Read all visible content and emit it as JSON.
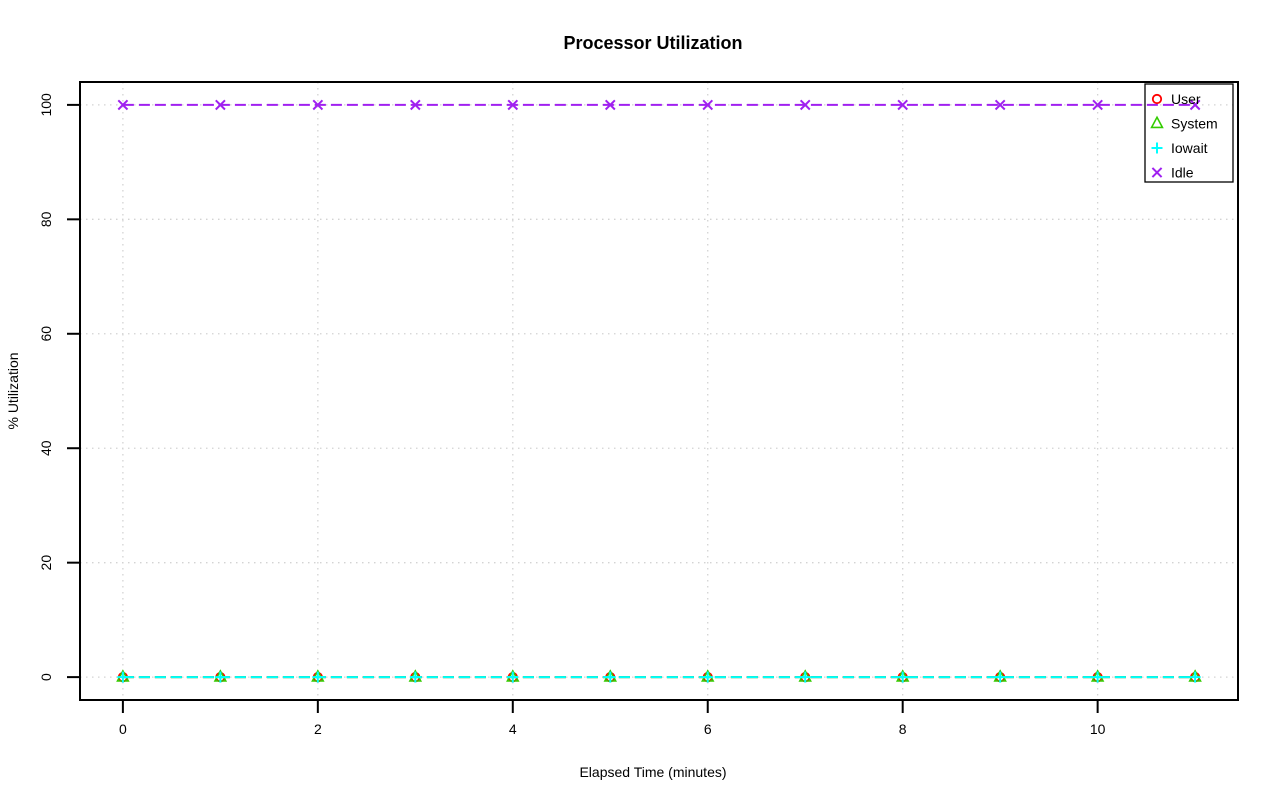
{
  "window": {
    "background": "#FFFFFF"
  },
  "chart_data": {
    "type": "line",
    "title": "Processor Utilization",
    "xlabel": "Elapsed Time (minutes)",
    "ylabel": "% Utilization",
    "x": [
      0,
      1,
      2,
      3,
      4,
      5,
      6,
      7,
      8,
      9,
      10,
      11
    ],
    "series": [
      {
        "name": "User",
        "color": "#FF0000",
        "marker": "circle",
        "values": [
          0,
          0,
          0,
          0,
          0,
          0,
          0,
          0,
          0,
          0,
          0,
          0
        ]
      },
      {
        "name": "System",
        "color": "#33CC00",
        "marker": "triangle",
        "values": [
          0,
          0,
          0,
          0,
          0,
          0,
          0,
          0,
          0,
          0,
          0,
          0
        ]
      },
      {
        "name": "Iowait",
        "color": "#00FFFF",
        "marker": "plus",
        "values": [
          0,
          0,
          0,
          0,
          0,
          0,
          0,
          0,
          0,
          0,
          0,
          0
        ]
      },
      {
        "name": "Idle",
        "color": "#A020F0",
        "marker": "x",
        "values": [
          100,
          100,
          100,
          100,
          100,
          100,
          100,
          100,
          100,
          100,
          100,
          100
        ]
      }
    ],
    "xticks": [
      0,
      2,
      4,
      6,
      8,
      10
    ],
    "yticks": [
      0,
      20,
      40,
      60,
      80,
      100
    ],
    "xlim": [
      -0.44,
      11.44
    ],
    "ylim": [
      -4,
      104
    ],
    "grid": "dotted",
    "grid_color": "#D3D3D3",
    "line_style": "dashed",
    "legend": {
      "position": "topright",
      "entries": [
        "User",
        "System",
        "Iowait",
        "Idle"
      ]
    },
    "axis_color": "#000000"
  }
}
